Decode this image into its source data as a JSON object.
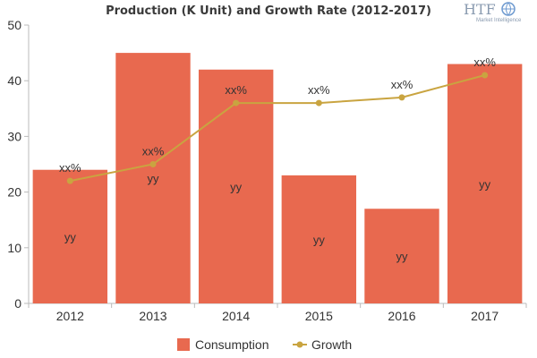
{
  "chart_data": {
    "type": "bar",
    "title": "Production (K Unit) and Growth Rate (2012-2017)",
    "categories": [
      "2012",
      "2013",
      "2014",
      "2015",
      "2016",
      "2017"
    ],
    "ylim": [
      0,
      50
    ],
    "yticks": [
      0,
      10,
      20,
      30,
      40,
      50
    ],
    "grid": false,
    "legend_position": "bottom-center",
    "series": [
      {
        "name": "Consumption",
        "type": "bar",
        "color": "#e8694f",
        "values": [
          24,
          45,
          42,
          23,
          17,
          43
        ],
        "labels": [
          "yy",
          "yy",
          "yy",
          "yy",
          "yy",
          "yy"
        ]
      },
      {
        "name": "Growth",
        "type": "line",
        "color": "#c9a440",
        "values": [
          22,
          25,
          36,
          36,
          37,
          41
        ],
        "labels": [
          "xx%",
          "xx%",
          "xx%",
          "xx%",
          "xx%",
          "xx%"
        ]
      }
    ]
  },
  "logo": {
    "text": "HTF",
    "subtext": "Market Intelligence",
    "icon": "globe-icon"
  }
}
